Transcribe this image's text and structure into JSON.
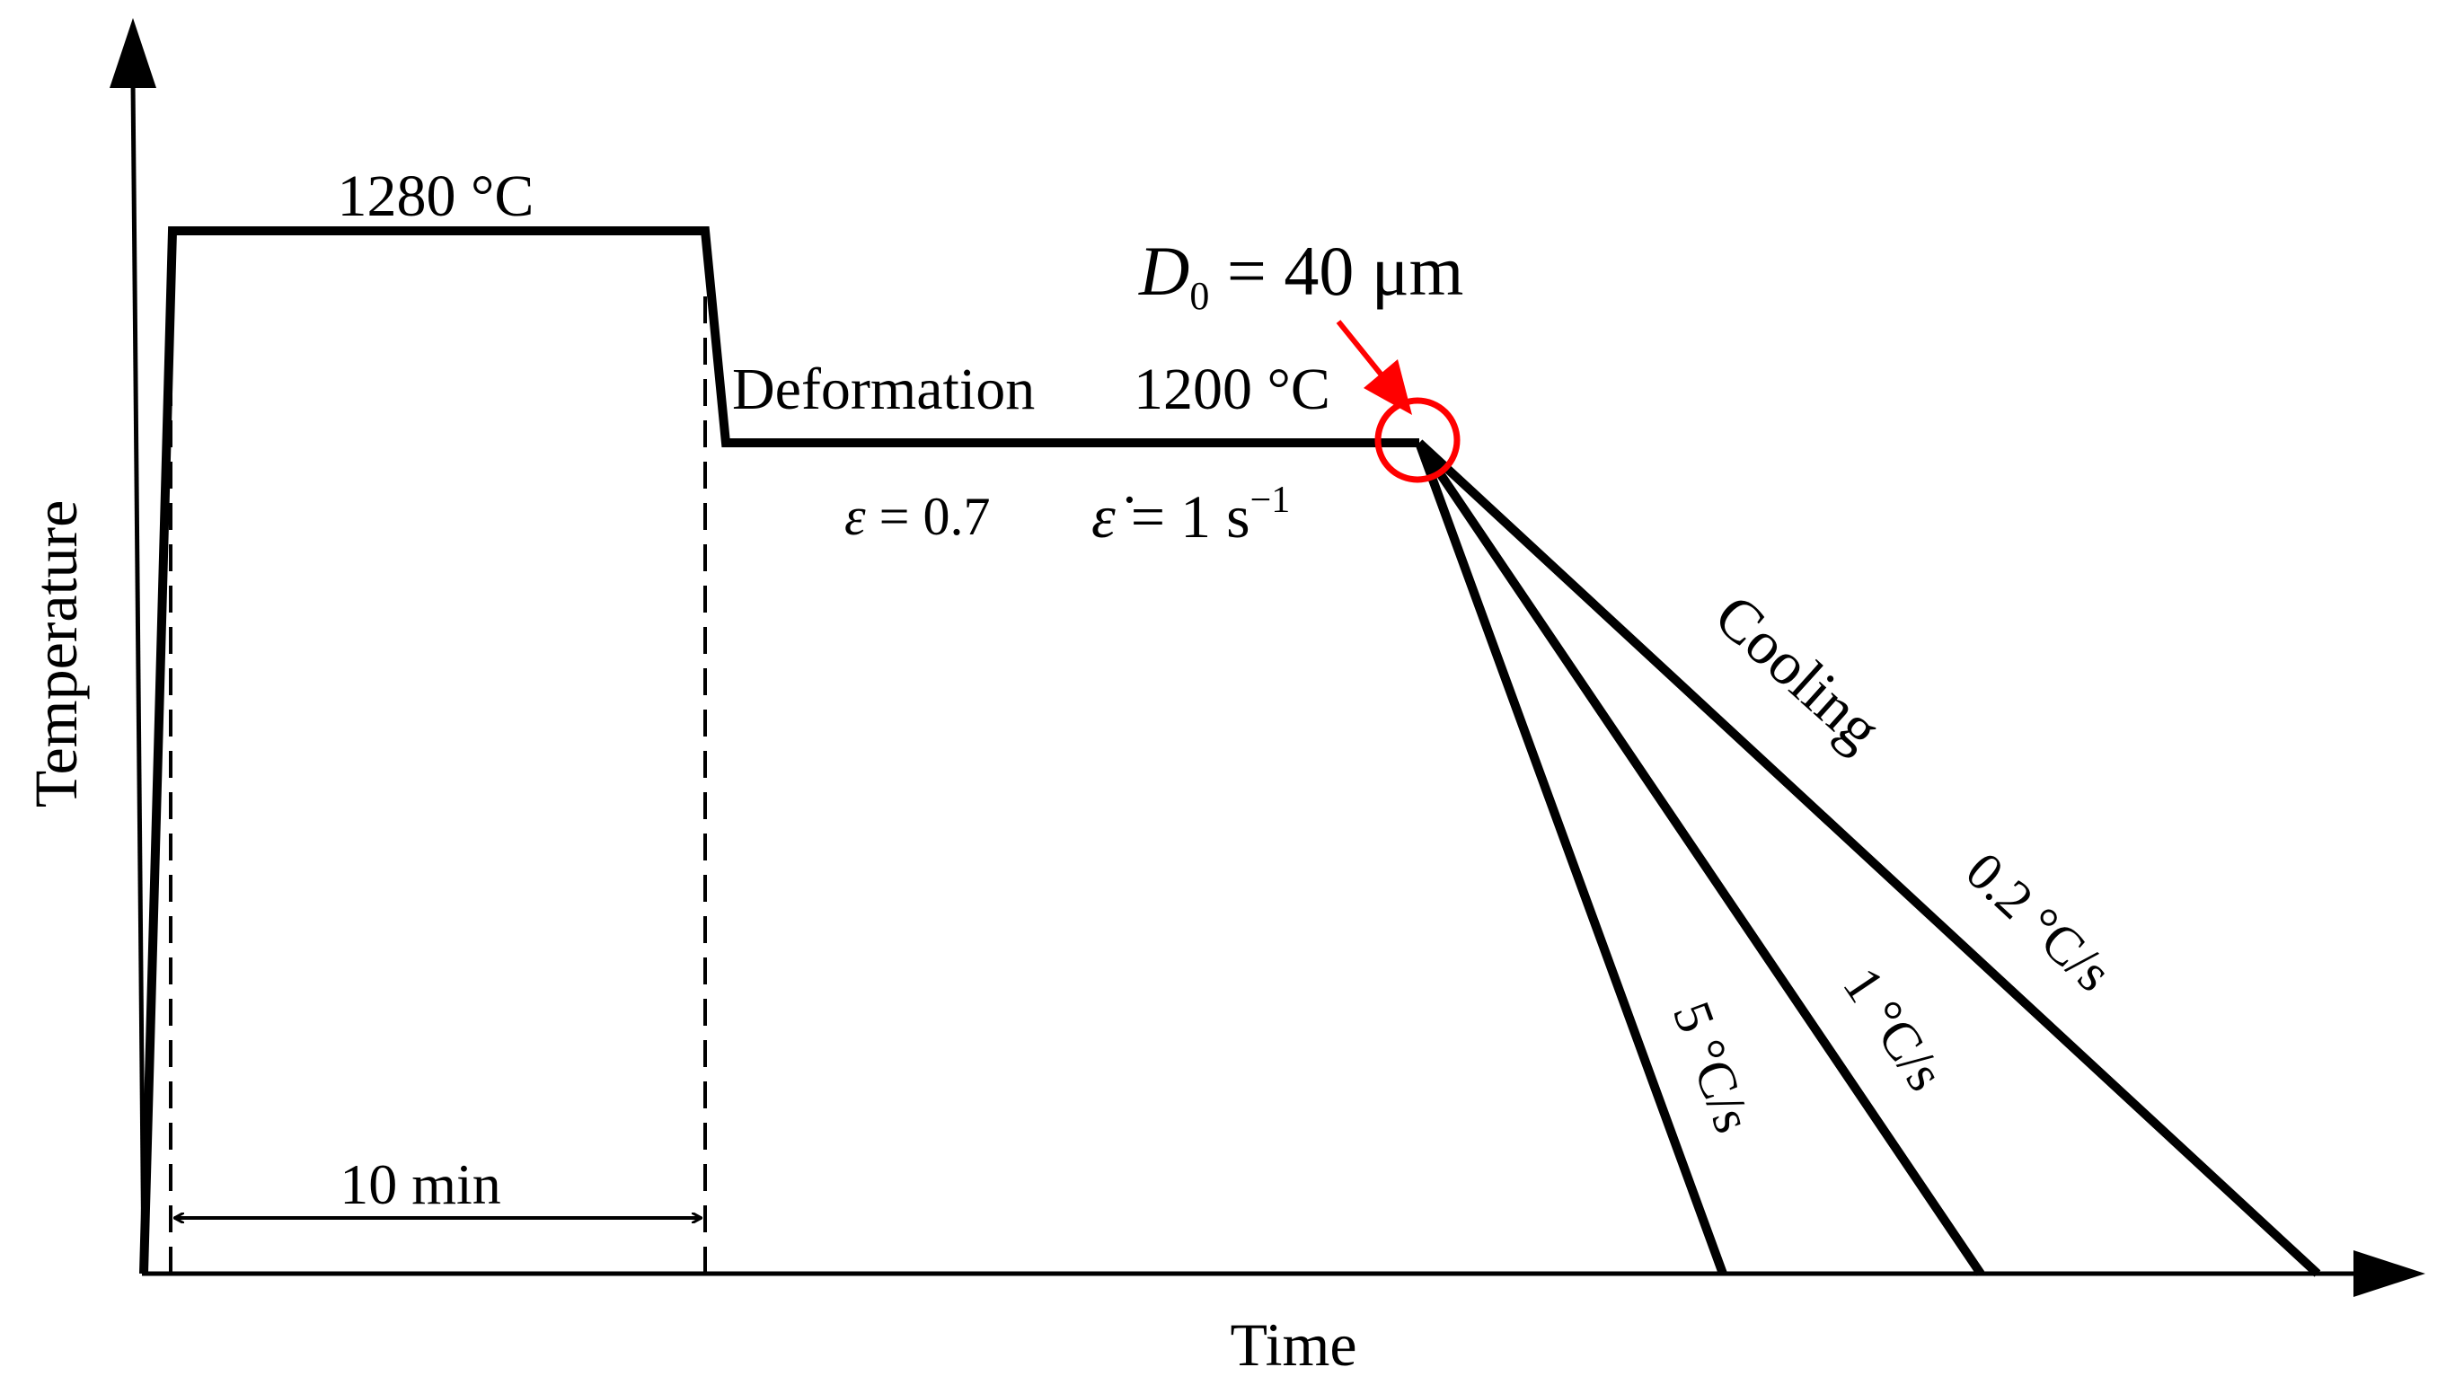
{
  "axes": {
    "y_label": "Temperature",
    "x_label": "Time"
  },
  "hold_temp_label": "1280 °C",
  "hold_time_label": "10 min",
  "deformation": {
    "label": "Deformation",
    "temp_label": "1200 °C",
    "strain_symbol": "ε",
    "strain_value": " = 0.7",
    "rate_symbol": "ε̇",
    "rate_value": " = 1 s",
    "rate_exponent": "−1"
  },
  "grain_size": {
    "symbol": "D",
    "subscript": "0",
    "value": " = 40 μm"
  },
  "cooling": {
    "label": "Cooling",
    "rates": [
      "5 °C/s",
      "1 °C/s",
      "0.2 °C/s"
    ]
  },
  "colors": {
    "line": "#000000",
    "highlight": "#ff0000"
  }
}
